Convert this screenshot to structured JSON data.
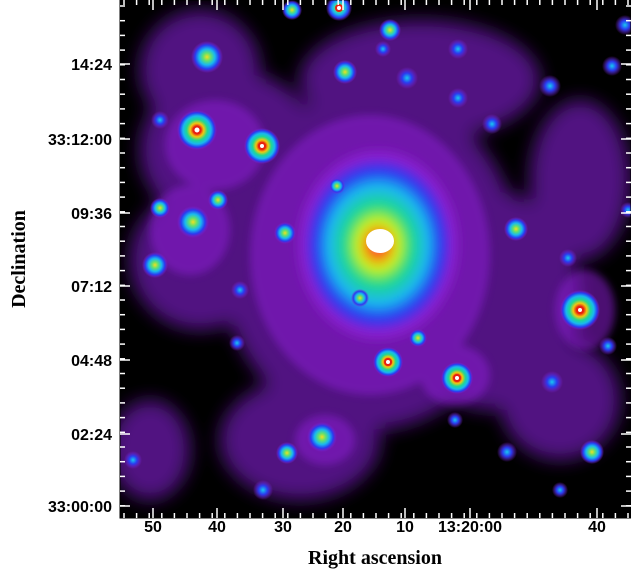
{
  "figure": {
    "xlabel": "Right ascension",
    "ylabel": "Declination",
    "x_ticks": [
      "50",
      "40",
      "30",
      "20",
      "10",
      "13:20:00",
      "40"
    ],
    "y_ticks": [
      "14:24",
      "33:12:00",
      "09:36",
      "07:12",
      "04:48",
      "02:24",
      "33:00:00"
    ],
    "colormap": [
      "#000000",
      "#4a0a6a",
      "#8a1fd0",
      "#2a3af0",
      "#18b8f0",
      "#20d890",
      "#b8f020",
      "#f0c810",
      "#e82010",
      "#ffffff"
    ]
  }
}
